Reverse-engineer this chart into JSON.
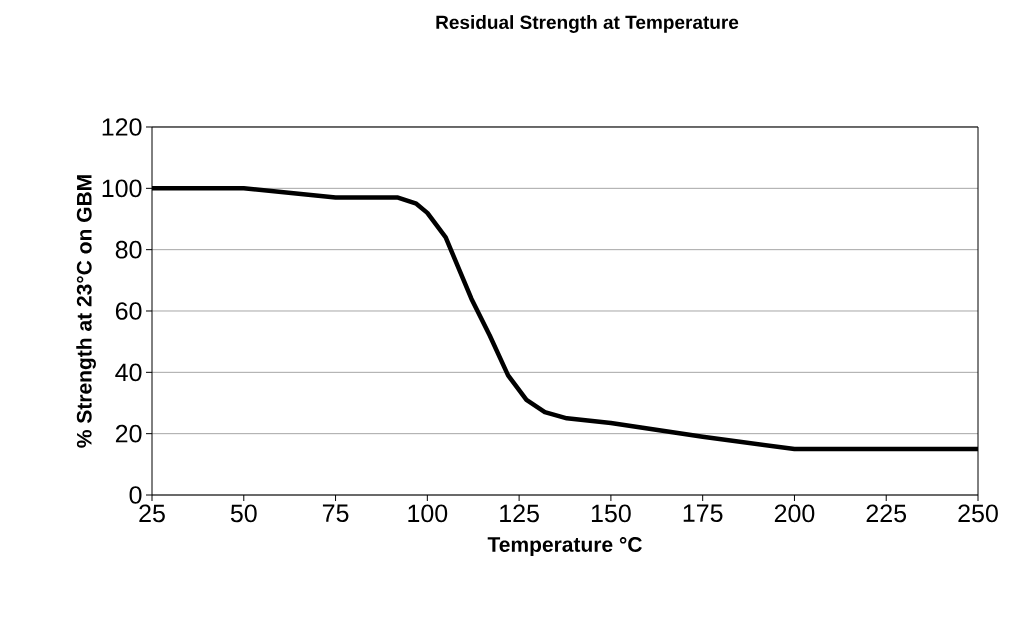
{
  "chart_data": {
    "type": "line",
    "title": "Residual Strength at Temperature",
    "xlabel": "Temperature °C",
    "ylabel": "% Strength at 23°C on GBM",
    "x": [
      25,
      50,
      75,
      92,
      97,
      100,
      105,
      112,
      117,
      122,
      127,
      132,
      138,
      150,
      175,
      200,
      250
    ],
    "values": [
      100,
      100,
      97,
      97,
      95,
      92,
      84,
      64,
      52,
      39,
      31,
      27,
      25,
      23.5,
      19,
      15,
      15
    ],
    "color": "#000000",
    "xlim": [
      25,
      250
    ],
    "xticks": [
      25,
      50,
      75,
      100,
      125,
      150,
      175,
      200,
      225,
      250
    ],
    "ylim": [
      0,
      120
    ],
    "yticks": [
      0,
      20,
      40,
      60,
      80,
      100,
      120
    ],
    "grid": "y",
    "marker": "none",
    "line_style": "solid"
  }
}
